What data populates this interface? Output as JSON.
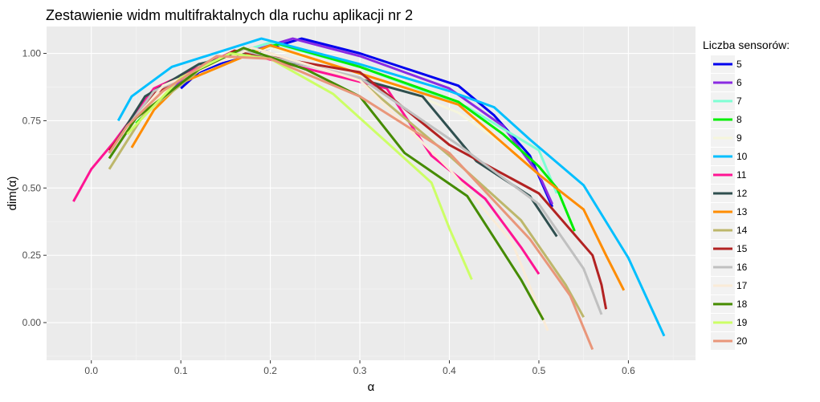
{
  "chart_data": {
    "type": "line",
    "title": "Zestawienie widm multifraktalnych dla ruchu aplikacji nr 2",
    "xlabel": "α",
    "ylabel": "dim(α)",
    "xlim": [
      -0.05,
      0.675
    ],
    "ylim": [
      -0.14,
      1.1
    ],
    "x_ticks": [
      {
        "v": 0.0,
        "label": "0.0"
      },
      {
        "v": 0.1,
        "label": "0.1"
      },
      {
        "v": 0.2,
        "label": "0.2"
      },
      {
        "v": 0.3,
        "label": "0.3"
      },
      {
        "v": 0.4,
        "label": "0.4"
      },
      {
        "v": 0.5,
        "label": "0.5"
      },
      {
        "v": 0.6,
        "label": "0.6"
      }
    ],
    "y_ticks": [
      {
        "v": 0.0,
        "label": "0.00"
      },
      {
        "v": 0.25,
        "label": "0.25"
      },
      {
        "v": 0.5,
        "label": "0.50"
      },
      {
        "v": 0.75,
        "label": "0.75"
      },
      {
        "v": 1.0,
        "label": "1.00"
      }
    ],
    "grid": true,
    "legend": {
      "title": "Liczba sensorów:",
      "position": "right"
    },
    "series": [
      {
        "name": "5",
        "color": "#0000EE",
        "points": [
          [
            0.1,
            0.87
          ],
          [
            0.12,
            0.93
          ],
          [
            0.15,
            0.97
          ],
          [
            0.2,
            1.02
          ],
          [
            0.235,
            1.055
          ],
          [
            0.3,
            1.0
          ],
          [
            0.41,
            0.88
          ],
          [
            0.45,
            0.77
          ],
          [
            0.49,
            0.62
          ],
          [
            0.515,
            0.43
          ]
        ]
      },
      {
        "name": "6",
        "color": "#8A2BE2",
        "points": [
          [
            0.09,
            0.87
          ],
          [
            0.11,
            0.93
          ],
          [
            0.17,
            1.0
          ],
          [
            0.225,
            1.055
          ],
          [
            0.3,
            0.99
          ],
          [
            0.4,
            0.87
          ],
          [
            0.46,
            0.73
          ],
          [
            0.5,
            0.55
          ],
          [
            0.515,
            0.44
          ]
        ]
      },
      {
        "name": "7",
        "color": "#7FFFD4",
        "points": [
          [
            0.04,
            0.72
          ],
          [
            0.07,
            0.86
          ],
          [
            0.13,
            0.97
          ],
          [
            0.2,
            1.04
          ],
          [
            0.3,
            0.95
          ],
          [
            0.42,
            0.8
          ],
          [
            0.47,
            0.7
          ],
          [
            0.5,
            0.64
          ],
          [
            0.52,
            0.48
          ]
        ]
      },
      {
        "name": "8",
        "color": "#00EE00",
        "points": [
          [
            0.05,
            0.74
          ],
          [
            0.1,
            0.91
          ],
          [
            0.15,
            0.98
          ],
          [
            0.21,
            1.035
          ],
          [
            0.3,
            0.95
          ],
          [
            0.41,
            0.82
          ],
          [
            0.46,
            0.7
          ],
          [
            0.5,
            0.58
          ],
          [
            0.52,
            0.5
          ],
          [
            0.54,
            0.34
          ]
        ]
      },
      {
        "name": "9",
        "color": "#F5F5DC",
        "points": [
          [
            0.05,
            0.76
          ],
          [
            0.11,
            0.94
          ],
          [
            0.2,
            1.02
          ],
          [
            0.3,
            0.93
          ],
          [
            0.41,
            0.78
          ],
          [
            0.47,
            0.64
          ],
          [
            0.51,
            0.52
          ]
        ]
      },
      {
        "name": "10",
        "color": "#00BFFF",
        "points": [
          [
            0.03,
            0.75
          ],
          [
            0.045,
            0.84
          ],
          [
            0.09,
            0.95
          ],
          [
            0.19,
            1.055
          ],
          [
            0.3,
            0.96
          ],
          [
            0.4,
            0.86
          ],
          [
            0.45,
            0.8
          ],
          [
            0.49,
            0.68
          ],
          [
            0.55,
            0.51
          ],
          [
            0.6,
            0.24
          ],
          [
            0.64,
            -0.05
          ]
        ]
      },
      {
        "name": "11",
        "color": "#FF1493",
        "points": [
          [
            -0.02,
            0.45
          ],
          [
            0.0,
            0.57
          ],
          [
            0.025,
            0.67
          ],
          [
            0.07,
            0.87
          ],
          [
            0.16,
            1.01
          ],
          [
            0.33,
            0.87
          ],
          [
            0.38,
            0.62
          ],
          [
            0.44,
            0.46
          ],
          [
            0.48,
            0.28
          ],
          [
            0.5,
            0.18
          ]
        ]
      },
      {
        "name": "12",
        "color": "#2F4F4F",
        "points": [
          [
            0.02,
            0.63
          ],
          [
            0.06,
            0.84
          ],
          [
            0.12,
            0.96
          ],
          [
            0.17,
            1.0
          ],
          [
            0.25,
            0.95
          ],
          [
            0.37,
            0.84
          ],
          [
            0.43,
            0.6
          ],
          [
            0.49,
            0.47
          ],
          [
            0.52,
            0.32
          ]
        ]
      },
      {
        "name": "13",
        "color": "#FF8C00",
        "points": [
          [
            0.045,
            0.65
          ],
          [
            0.07,
            0.79
          ],
          [
            0.1,
            0.89
          ],
          [
            0.2,
            1.03
          ],
          [
            0.41,
            0.81
          ],
          [
            0.5,
            0.55
          ],
          [
            0.55,
            0.42
          ],
          [
            0.575,
            0.25
          ],
          [
            0.595,
            0.12
          ]
        ]
      },
      {
        "name": "14",
        "color": "#BDB76B",
        "points": [
          [
            0.02,
            0.57
          ],
          [
            0.06,
            0.78
          ],
          [
            0.13,
            0.96
          ],
          [
            0.18,
            1.02
          ],
          [
            0.3,
            0.9
          ],
          [
            0.4,
            0.62
          ],
          [
            0.48,
            0.38
          ],
          [
            0.53,
            0.14
          ],
          [
            0.55,
            0.02
          ]
        ]
      },
      {
        "name": "15",
        "color": "#B22222",
        "points": [
          [
            0.02,
            0.64
          ],
          [
            0.07,
            0.85
          ],
          [
            0.16,
            1.01
          ],
          [
            0.3,
            0.93
          ],
          [
            0.4,
            0.66
          ],
          [
            0.5,
            0.48
          ],
          [
            0.56,
            0.25
          ],
          [
            0.57,
            0.14
          ],
          [
            0.575,
            0.05
          ]
        ]
      },
      {
        "name": "16",
        "color": "#C0C0C0",
        "points": [
          [
            0.03,
            0.68
          ],
          [
            0.07,
            0.86
          ],
          [
            0.17,
            1.01
          ],
          [
            0.3,
            0.91
          ],
          [
            0.41,
            0.66
          ],
          [
            0.5,
            0.44
          ],
          [
            0.55,
            0.2
          ],
          [
            0.57,
            0.03
          ]
        ]
      },
      {
        "name": "17",
        "color": "#FAEBD7",
        "points": [
          [
            0.035,
            0.7
          ],
          [
            0.08,
            0.88
          ],
          [
            0.18,
            1.02
          ],
          [
            0.3,
            0.9
          ],
          [
            0.4,
            0.57
          ],
          [
            0.47,
            0.3
          ],
          [
            0.5,
            0.05
          ],
          [
            0.51,
            -0.03
          ]
        ]
      },
      {
        "name": "18",
        "color": "#458B00",
        "points": [
          [
            0.02,
            0.61
          ],
          [
            0.05,
            0.76
          ],
          [
            0.12,
            0.94
          ],
          [
            0.17,
            1.02
          ],
          [
            0.24,
            0.94
          ],
          [
            0.3,
            0.84
          ],
          [
            0.35,
            0.63
          ],
          [
            0.42,
            0.47
          ],
          [
            0.48,
            0.16
          ],
          [
            0.505,
            0.01
          ]
        ]
      },
      {
        "name": "19",
        "color": "#CCFF66",
        "points": [
          [
            0.04,
            0.7
          ],
          [
            0.1,
            0.91
          ],
          [
            0.155,
            1.0
          ],
          [
            0.2,
            0.98
          ],
          [
            0.27,
            0.85
          ],
          [
            0.33,
            0.67
          ],
          [
            0.38,
            0.52
          ],
          [
            0.4,
            0.35
          ],
          [
            0.425,
            0.16
          ]
        ]
      },
      {
        "name": "20",
        "color": "#E9967A",
        "points": [
          [
            0.02,
            0.63
          ],
          [
            0.04,
            0.73
          ],
          [
            0.08,
            0.86
          ],
          [
            0.14,
            0.99
          ],
          [
            0.2,
            0.98
          ],
          [
            0.3,
            0.84
          ],
          [
            0.4,
            0.63
          ],
          [
            0.49,
            0.31
          ],
          [
            0.535,
            0.1
          ],
          [
            0.56,
            -0.1
          ]
        ]
      }
    ]
  }
}
